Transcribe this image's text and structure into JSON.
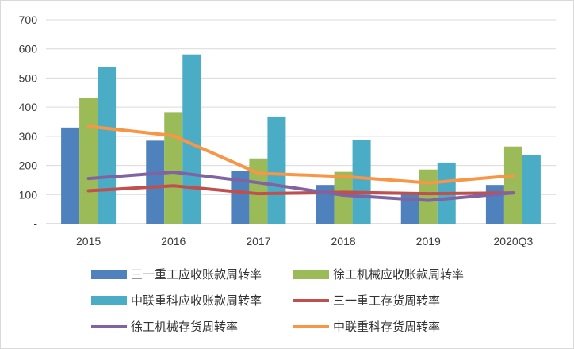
{
  "chart_data": {
    "type": "bar",
    "categories": [
      "2015",
      "2016",
      "2017",
      "2018",
      "2019",
      "2020Q3"
    ],
    "ylim": [
      0,
      700
    ],
    "yticks": [
      {
        "value": 0,
        "label": "-"
      },
      {
        "value": 100,
        "label": "100"
      },
      {
        "value": 200,
        "label": "200"
      },
      {
        "value": 300,
        "label": "300"
      },
      {
        "value": 400,
        "label": "400"
      },
      {
        "value": 500,
        "label": "500"
      },
      {
        "value": 600,
        "label": "600"
      },
      {
        "value": 700,
        "label": "700"
      }
    ],
    "grid": true,
    "legend_position": "bottom",
    "bar_series": [
      {
        "name": "三一重工应收账款周转率",
        "color": "#4f81bd",
        "values": [
          330,
          285,
          180,
          133,
          100,
          133
        ]
      },
      {
        "name": "徐工机械应收账款周转率",
        "color": "#9bbb59",
        "values": [
          432,
          383,
          224,
          178,
          186,
          265
        ]
      },
      {
        "name": "中联重科应收账款周转率",
        "color": "#4bacc6",
        "values": [
          537,
          581,
          368,
          287,
          210,
          235
        ]
      }
    ],
    "line_series": [
      {
        "name": "三一重工存货周转率",
        "color": "#c0504d",
        "values": [
          113,
          130,
          103,
          108,
          103,
          106
        ]
      },
      {
        "name": "徐工机械存货周转率",
        "color": "#8064a2",
        "values": [
          155,
          177,
          141,
          98,
          80,
          106
        ]
      },
      {
        "name": "中联重科存货周转率",
        "color": "#f79646",
        "values": [
          334,
          302,
          173,
          162,
          140,
          165
        ]
      }
    ]
  }
}
